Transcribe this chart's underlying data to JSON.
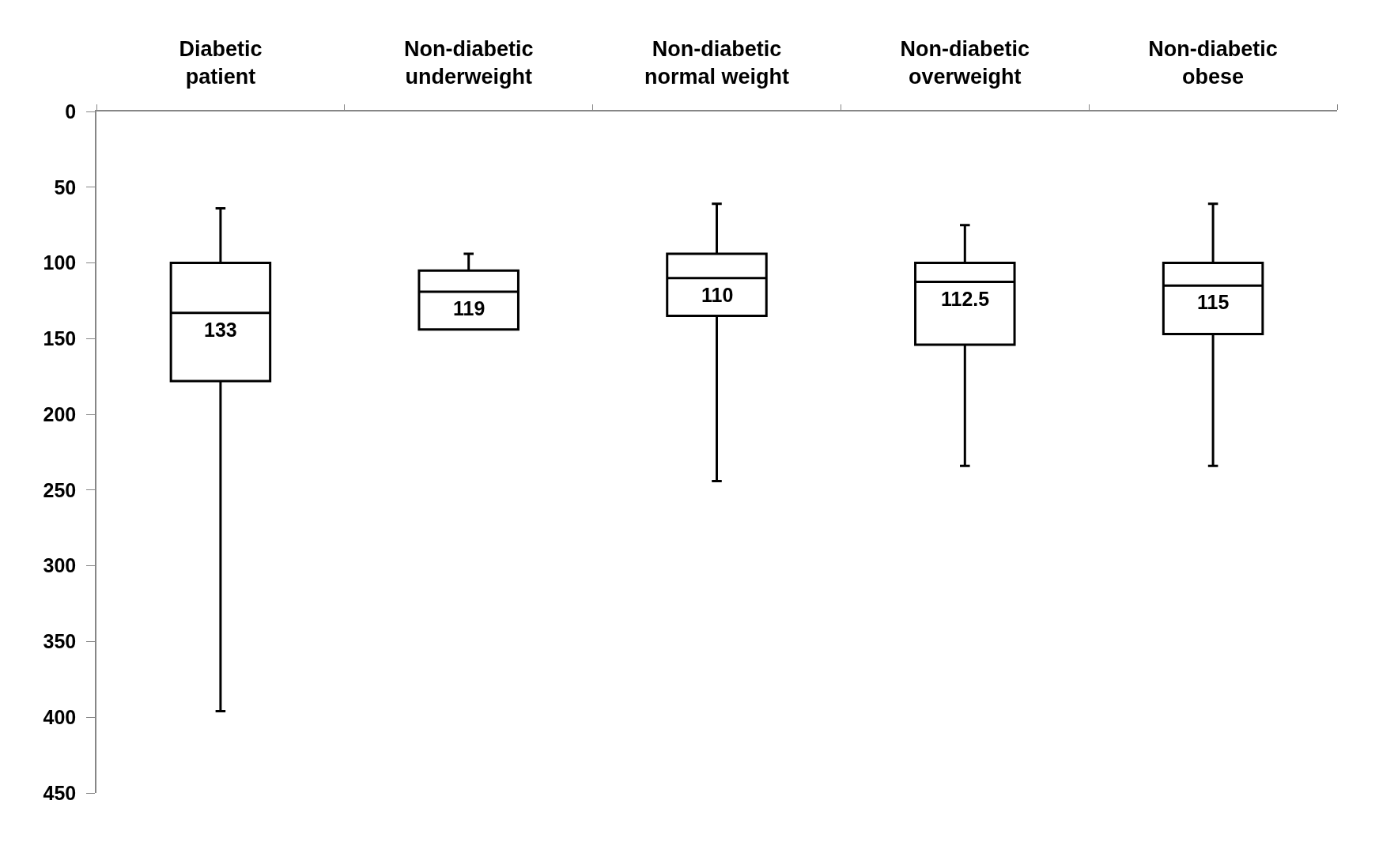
{
  "chart_data": {
    "type": "box",
    "categories": [
      "Diabetic\npatient",
      "Non-diabetic\nunderweight",
      "Non-diabetic\nnormal weight",
      "Non-diabetic\noverweight",
      "Non-diabetic\nobese"
    ],
    "series": [
      {
        "color": "#000000",
        "boxes": [
          {
            "low": 64,
            "q1": 100,
            "median": 133,
            "q3": 178,
            "high": 396
          },
          {
            "low": 94,
            "q1": 105,
            "median": 119,
            "q3": 144,
            "high": 144
          },
          {
            "low": 61,
            "q1": 94,
            "median": 110,
            "q3": 135,
            "high": 244
          },
          {
            "low": 75,
            "q1": 100,
            "median": 112.5,
            "q3": 154,
            "high": 234
          },
          {
            "low": 61,
            "q1": 100,
            "median": 115,
            "q3": 147,
            "high": 234
          }
        ]
      }
    ],
    "ylim": [
      450,
      0
    ],
    "yticks": [
      0,
      50,
      100,
      150,
      200,
      250,
      300,
      350,
      400,
      450
    ],
    "annotations": [
      {
        "text": "133",
        "x": "Diabetic\npatient",
        "y": 133
      },
      {
        "text": "119",
        "x": "Non-diabetic\nunderweight",
        "y": 119
      },
      {
        "text": "110",
        "x": "Non-diabetic\nnormal weight",
        "y": 110
      },
      {
        "text": "112.5",
        "x": "Non-diabetic\noverweight",
        "y": 112.5
      },
      {
        "text": "115",
        "x": "Non-diabetic\nobese",
        "y": 115
      }
    ]
  }
}
